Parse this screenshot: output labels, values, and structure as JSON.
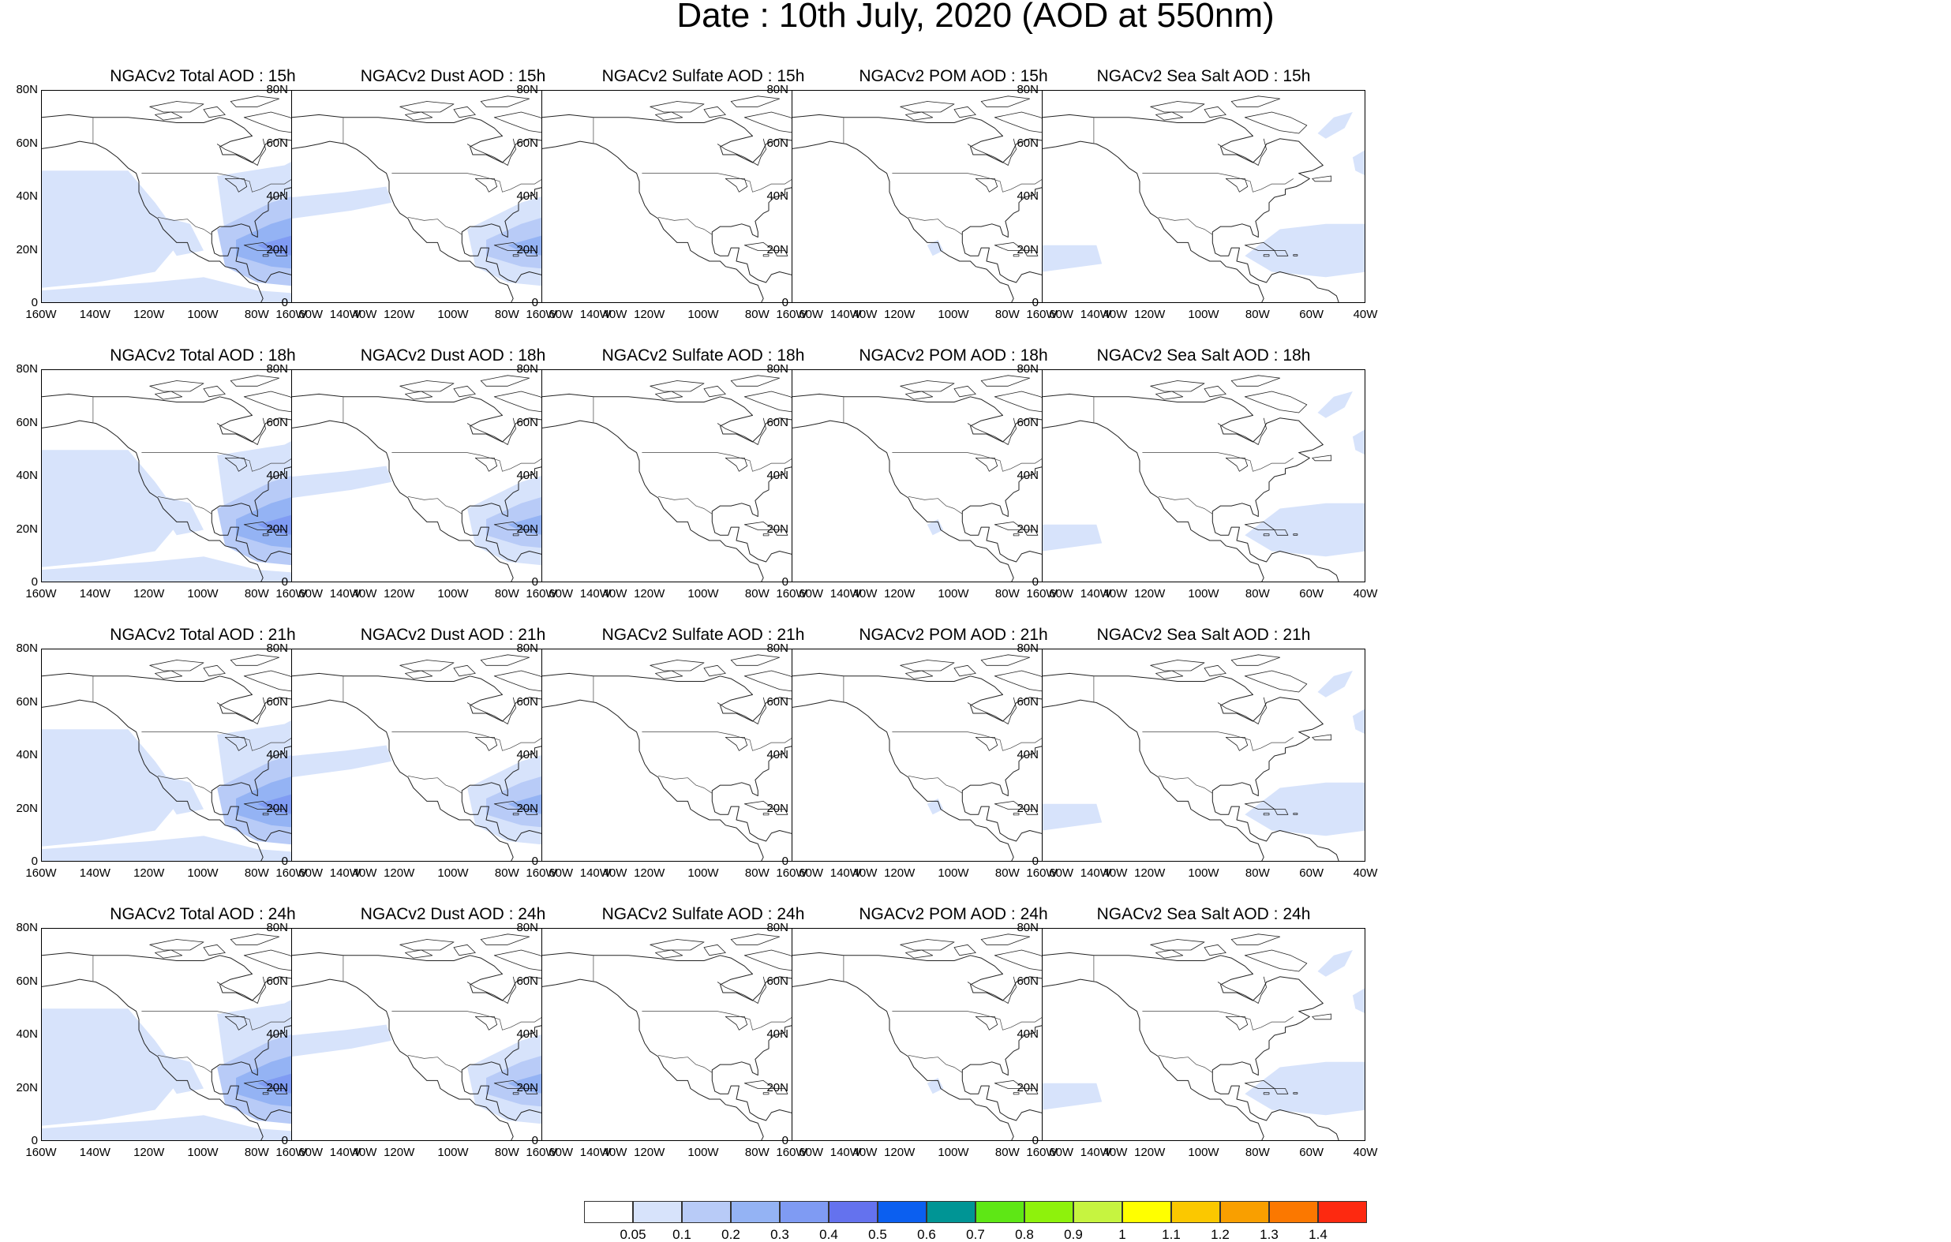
{
  "title": "Date : 10th July, 2020 (AOD at 550nm)",
  "columns": [
    {
      "key": "total",
      "label": "NGACv2 Total AOD"
    },
    {
      "key": "dust",
      "label": "NGACv2 Dust AOD"
    },
    {
      "key": "sulfate",
      "label": "NGACv2 Sulfate AOD"
    },
    {
      "key": "pom",
      "label": "NGACv2 POM AOD"
    },
    {
      "key": "seasalt",
      "label": "NGACv2 Sea Salt AOD"
    }
  ],
  "panels": [
    {
      "title": "NGACv2 Total AOD : 15h",
      "field": "total"
    },
    {
      "title": "NGACv2 Dust AOD : 15h",
      "field": "dust"
    },
    {
      "title": "NGACv2 Sulfate AOD : 15h",
      "field": "sulfate"
    },
    {
      "title": "NGACv2 POM AOD : 15h",
      "field": "pom"
    },
    {
      "title": "NGACv2 Sea Salt AOD : 15h",
      "field": "seasalt"
    },
    {
      "title": "NGACv2 Total AOD : 18h",
      "field": "total"
    },
    {
      "title": "NGACv2 Dust AOD : 18h",
      "field": "dust"
    },
    {
      "title": "NGACv2 Sulfate AOD : 18h",
      "field": "sulfate"
    },
    {
      "title": "NGACv2 POM AOD : 18h",
      "field": "pom"
    },
    {
      "title": "NGACv2 Sea Salt AOD : 18h",
      "field": "seasalt"
    },
    {
      "title": "NGACv2 Total AOD : 21h",
      "field": "total"
    },
    {
      "title": "NGACv2 Dust AOD : 21h",
      "field": "dust"
    },
    {
      "title": "NGACv2 Sulfate AOD : 21h",
      "field": "sulfate"
    },
    {
      "title": "NGACv2 POM AOD : 21h",
      "field": "pom"
    },
    {
      "title": "NGACv2 Sea Salt AOD : 21h",
      "field": "seasalt"
    },
    {
      "title": "NGACv2 Total AOD : 24h",
      "field": "total"
    },
    {
      "title": "NGACv2 Dust AOD : 24h",
      "field": "dust"
    },
    {
      "title": "NGACv2 Sulfate AOD : 24h",
      "field": "sulfate"
    },
    {
      "title": "NGACv2 POM AOD : 24h",
      "field": "pom"
    },
    {
      "title": "NGACv2 Sea Salt  AOD : 24h",
      "field": "seasalt"
    }
  ],
  "axes": {
    "lat_ticks": [
      "80N",
      "60N",
      "40N",
      "20N",
      "0"
    ],
    "lon_ticks": [
      "160W",
      "140W",
      "120W",
      "100W",
      "80W",
      "60W",
      "40W"
    ],
    "lat_range": [
      0,
      80
    ],
    "lon_range": [
      -160,
      -40
    ]
  },
  "colorbar": {
    "colors": [
      "#ffffff",
      "#d7e3fb",
      "#b8cbf7",
      "#94b3f4",
      "#7f9bf3",
      "#6472ee",
      "#0b5ff0",
      "#009595",
      "#5ee715",
      "#8ef20c",
      "#c6f440",
      "#ffff00",
      "#fbc800",
      "#f99f00",
      "#fb7800",
      "#fd2910"
    ],
    "labels": [
      "0.05",
      "0.1",
      "0.2",
      "0.3",
      "0.4",
      "0.5",
      "0.6",
      "0.7",
      "0.8",
      "0.9",
      "1",
      "1.1",
      "1.2",
      "1.3",
      "1.4"
    ]
  }
}
